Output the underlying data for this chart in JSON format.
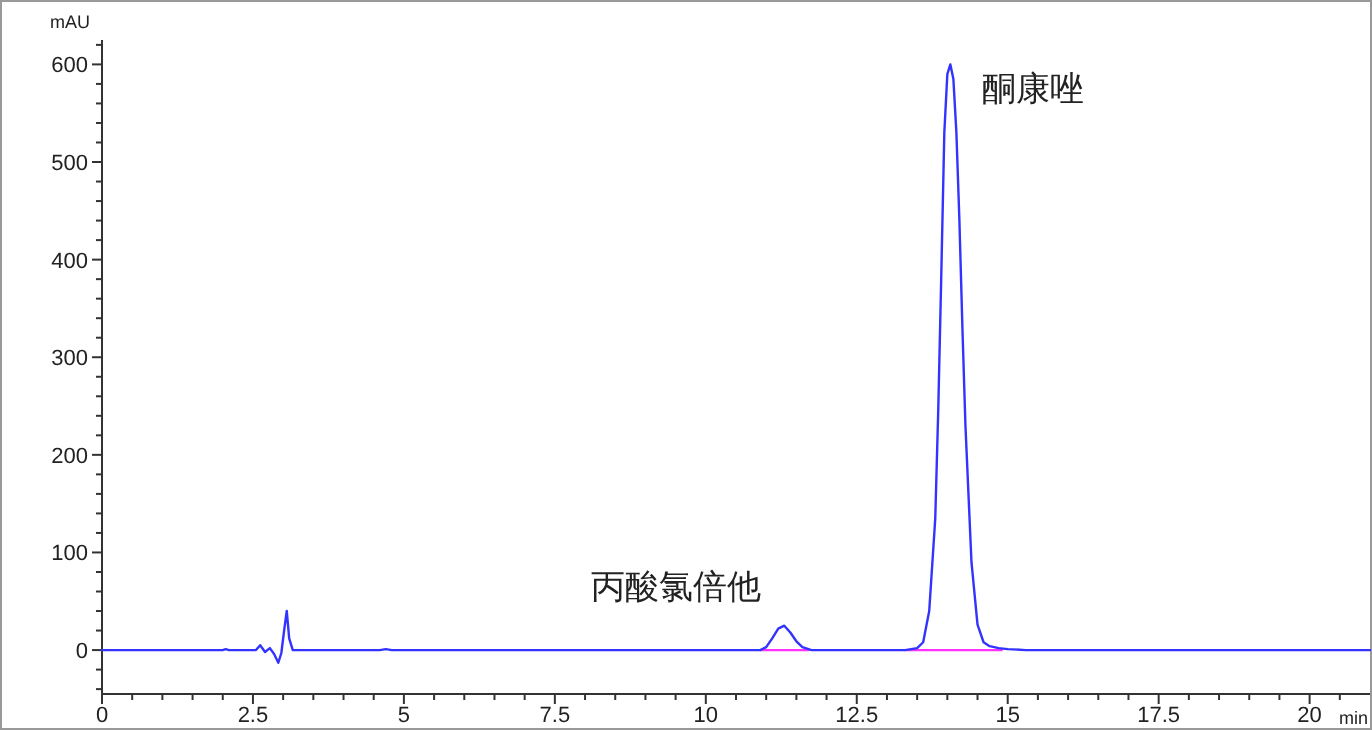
{
  "chart_data": {
    "type": "line",
    "xlabel": "min",
    "ylabel": "mAU",
    "xlim": [
      0,
      21
    ],
    "ylim": [
      -45,
      625
    ],
    "xticks": [
      0,
      {
        "value": 0.5,
        "label": null
      },
      {
        "value": 1,
        "label": null
      },
      {
        "value": 1.5,
        "label": null
      },
      {
        "value": 2,
        "label": null
      },
      2.5,
      {
        "value": 3,
        "label": null
      },
      {
        "value": 3.5,
        "label": null
      },
      {
        "value": 4,
        "label": null
      },
      {
        "value": 4.5,
        "label": null
      },
      5,
      {
        "value": 5.5,
        "label": null
      },
      {
        "value": 6,
        "label": null
      },
      {
        "value": 6.5,
        "label": null
      },
      {
        "value": 7,
        "label": null
      },
      7.5,
      {
        "value": 8,
        "label": null
      },
      {
        "value": 8.5,
        "label": null
      },
      {
        "value": 9,
        "label": null
      },
      {
        "value": 9.5,
        "label": null
      },
      10,
      {
        "value": 10.5,
        "label": null
      },
      {
        "value": 11,
        "label": null
      },
      {
        "value": 11.5,
        "label": null
      },
      {
        "value": 12,
        "label": null
      },
      12.5,
      {
        "value": 13,
        "label": null
      },
      {
        "value": 13.5,
        "label": null
      },
      {
        "value": 14,
        "label": null
      },
      {
        "value": 14.5,
        "label": null
      },
      15,
      {
        "value": 15.5,
        "label": null
      },
      {
        "value": 16,
        "label": null
      },
      {
        "value": 16.5,
        "label": null
      },
      {
        "value": 17,
        "label": null
      },
      17.5,
      {
        "value": 18,
        "label": null
      },
      {
        "value": 18.5,
        "label": null
      },
      {
        "value": 19,
        "label": null
      },
      {
        "value": 19.5,
        "label": null
      },
      20,
      {
        "value": 20.5,
        "label": null
      }
    ],
    "yticks": [
      {
        "value": -40,
        "label": null
      },
      {
        "value": -20,
        "label": null
      },
      0,
      {
        "value": 20,
        "label": null
      },
      {
        "value": 40,
        "label": null
      },
      {
        "value": 60,
        "label": null
      },
      {
        "value": 80,
        "label": null
      },
      100,
      {
        "value": 120,
        "label": null
      },
      {
        "value": 140,
        "label": null
      },
      {
        "value": 160,
        "label": null
      },
      {
        "value": 180,
        "label": null
      },
      200,
      {
        "value": 220,
        "label": null
      },
      {
        "value": 240,
        "label": null
      },
      {
        "value": 260,
        "label": null
      },
      {
        "value": 280,
        "label": null
      },
      300,
      {
        "value": 320,
        "label": null
      },
      {
        "value": 340,
        "label": null
      },
      {
        "value": 360,
        "label": null
      },
      {
        "value": 380,
        "label": null
      },
      400,
      {
        "value": 420,
        "label": null
      },
      {
        "value": 440,
        "label": null
      },
      {
        "value": 460,
        "label": null
      },
      {
        "value": 480,
        "label": null
      },
      500,
      {
        "value": 520,
        "label": null
      },
      {
        "value": 540,
        "label": null
      },
      {
        "value": 560,
        "label": null
      },
      {
        "value": 580,
        "label": null
      },
      600,
      {
        "value": 620,
        "label": null
      }
    ],
    "grid": false,
    "marker": "none",
    "line_style": "solid",
    "series": [
      {
        "color": "#3333ff",
        "x": [
          0,
          2.0,
          2.05,
          2.1,
          2.55,
          2.62,
          2.7,
          2.78,
          2.85,
          2.92,
          2.97,
          3.02,
          3.06,
          3.1,
          3.16,
          4.6,
          4.7,
          4.8,
          10.9,
          11.0,
          11.1,
          11.2,
          11.3,
          11.4,
          11.5,
          11.6,
          11.75,
          13.3,
          13.5,
          13.6,
          13.7,
          13.8,
          13.85,
          13.9,
          13.95,
          14.0,
          14.05,
          14.1,
          14.15,
          14.2,
          14.25,
          14.3,
          14.4,
          14.5,
          14.6,
          14.7,
          14.85,
          15.0,
          15.3,
          21
        ],
        "values": [
          0,
          0,
          1,
          0,
          0,
          5,
          -2,
          2,
          -4,
          -13,
          -3,
          22,
          40,
          12,
          0,
          0,
          1,
          0,
          0,
          3,
          12,
          22,
          25,
          18,
          9,
          3,
          0,
          0,
          2,
          8,
          40,
          135,
          247,
          385,
          530,
          590,
          600,
          585,
          530,
          440,
          330,
          230,
          90,
          26,
          8,
          4,
          2,
          1,
          0,
          0
        ]
      },
      {
        "color": "#ff33ff",
        "x": [
          10.9,
          11.7
        ],
        "values": [
          0,
          0
        ]
      },
      {
        "color": "#ff33ff",
        "x": [
          13.3,
          14.9
        ],
        "values": [
          0,
          0
        ]
      }
    ],
    "annotations": [
      {
        "text": "丙酸氯倍他",
        "x": 11.25,
        "y": 25
      },
      {
        "text": "酮康唑",
        "x": 14.05,
        "y": 600
      }
    ]
  }
}
